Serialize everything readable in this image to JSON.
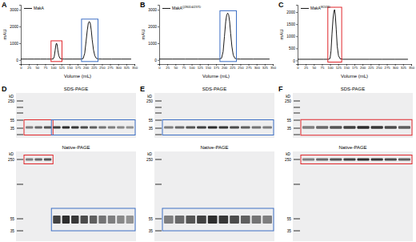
{
  "chart_data": [
    {
      "type": "line",
      "title": "A",
      "x_label": "Volume (mL)",
      "y_label": "mAU",
      "x": [
        0,
        20,
        40,
        60,
        80,
        95,
        100,
        103,
        106,
        108,
        110,
        112,
        114,
        117,
        121,
        126,
        135,
        160,
        185,
        192,
        197,
        201,
        205,
        208,
        211,
        214,
        217,
        220,
        224,
        228,
        233,
        240,
        250,
        280,
        310,
        340
      ],
      "series": [
        {
          "name": "MakA",
          "color": "#000000",
          "values": [
            50,
            50,
            50,
            50,
            50,
            50,
            60,
            200,
            600,
            900,
            1000,
            900,
            600,
            250,
            90,
            55,
            50,
            50,
            50,
            80,
            400,
            1100,
            1800,
            2200,
            2300,
            2200,
            1800,
            1200,
            600,
            250,
            90,
            55,
            50,
            50,
            50,
            50
          ]
        }
      ],
      "xlim": [
        0,
        350
      ],
      "xticks": [
        0,
        25,
        50,
        75,
        100,
        125,
        150,
        175,
        200,
        225,
        250,
        275,
        300,
        325,
        350
      ],
      "ylim": [
        -250,
        3300
      ],
      "yticks": [
        0,
        1000,
        2000,
        3000
      ]
    },
    {
      "type": "line",
      "title": "B",
      "x_label": "Volume (mL)",
      "y_label": "mAU",
      "x": [
        0,
        40,
        80,
        120,
        160,
        185,
        192,
        197,
        201,
        205,
        208,
        211,
        214,
        217,
        220,
        224,
        228,
        233,
        240,
        250,
        290,
        340
      ],
      "series": [
        {
          "name": "MakAQ280D&I237D",
          "color": "#000000",
          "values": [
            50,
            50,
            50,
            50,
            50,
            50,
            100,
            500,
            1400,
            2300,
            2700,
            2800,
            2700,
            2300,
            1600,
            800,
            300,
            100,
            55,
            50,
            50,
            50
          ]
        }
      ],
      "xlim": [
        0,
        350
      ],
      "xticks": [
        0,
        25,
        50,
        75,
        100,
        125,
        150,
        175,
        200,
        225,
        250,
        275,
        300,
        325,
        350
      ],
      "ylim": [
        -250,
        3300
      ],
      "yticks": [
        0,
        1000,
        2000,
        3000
      ]
    },
    {
      "type": "line",
      "title": "C",
      "x_label": "Volume (mL)",
      "y_label": "mAU",
      "x": [
        0,
        40,
        80,
        95,
        100,
        103,
        106,
        109,
        112,
        114,
        116,
        119,
        122,
        126,
        131,
        140,
        180,
        220,
        260,
        300,
        340
      ],
      "series": [
        {
          "name": "MakAW243D",
          "color": "#000000",
          "values": [
            50,
            50,
            50,
            50,
            80,
            400,
            1100,
            1700,
            2050,
            2100,
            1900,
            1300,
            600,
            200,
            70,
            50,
            50,
            50,
            50,
            50,
            50
          ]
        }
      ],
      "xlim": [
        0,
        350
      ],
      "xticks": [
        0,
        25,
        50,
        75,
        100,
        125,
        150,
        175,
        200,
        225,
        250,
        275,
        300,
        325,
        350
      ],
      "ylim": [
        -150,
        2300
      ],
      "yticks": [
        0,
        500,
        1000,
        1500,
        2000
      ]
    }
  ],
  "gels": [
    {
      "title": "D",
      "sections": [
        {
          "label": "SDS-PAGE",
          "unit": "kD",
          "markers": [
            250,
            55,
            35
          ]
        },
        {
          "label": "Native-PAGE",
          "unit": "kD",
          "markers": [
            250,
            55,
            35
          ]
        }
      ]
    },
    {
      "title": "E",
      "sections": [
        {
          "label": "SDS-PAGE",
          "unit": "kD",
          "markers": [
            250,
            55,
            35
          ]
        },
        {
          "label": "Native-PAGE",
          "unit": "kD",
          "markers": [
            250,
            55,
            35
          ]
        }
      ]
    },
    {
      "title": "F",
      "sections": [
        {
          "label": "SDS-PAGE",
          "unit": "kD",
          "markers": [
            250,
            55,
            35
          ]
        },
        {
          "label": "Native-PAGE",
          "unit": "kD",
          "markers": [
            250,
            55,
            35
          ]
        }
      ]
    }
  ]
}
